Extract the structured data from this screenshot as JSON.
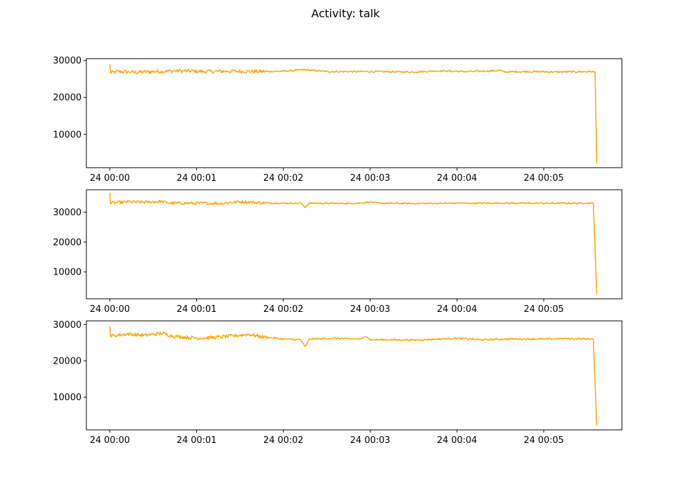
{
  "figure": {
    "title": "Activity: talk"
  },
  "chart_data": [
    {
      "type": "line",
      "title": "",
      "xlabel": "",
      "ylabel": "",
      "x_ticks": [
        "24 00:00",
        "24 00:01",
        "24 00:02",
        "24 00:03",
        "24 00:04",
        "24 00:05"
      ],
      "y_ticks": [
        10000,
        20000,
        30000
      ],
      "x_range_minutes": [
        -0.27,
        5.9
      ],
      "ylim": [
        1000,
        30500
      ],
      "color": "#ffa500",
      "series": [
        {
          "points": [
            [
              0.0,
              29000
            ],
            [
              0.01,
              26700
            ],
            [
              0.1,
              27000
            ],
            [
              0.3,
              26800
            ],
            [
              0.5,
              27000
            ],
            [
              0.8,
              27200
            ],
            [
              1.1,
              27000
            ],
            [
              1.4,
              27100
            ],
            [
              1.7,
              27000
            ],
            [
              2.0,
              27100
            ],
            [
              2.25,
              27500
            ],
            [
              2.5,
              27000
            ],
            [
              3.0,
              27000
            ],
            [
              3.5,
              26900
            ],
            [
              3.8,
              27200
            ],
            [
              4.1,
              27000
            ],
            [
              4.3,
              27100
            ],
            [
              4.5,
              27300
            ],
            [
              4.55,
              26900
            ],
            [
              4.8,
              27000
            ],
            [
              5.2,
              26900
            ],
            [
              5.55,
              27000
            ],
            [
              5.6,
              26800
            ],
            [
              5.61,
              2200
            ]
          ]
        }
      ]
    },
    {
      "type": "line",
      "title": "",
      "xlabel": "",
      "ylabel": "",
      "x_ticks": [
        "24 00:00",
        "24 00:01",
        "24 00:02",
        "24 00:03",
        "24 00:04",
        "24 00:05"
      ],
      "y_ticks": [
        10000,
        20000,
        30000
      ],
      "x_range_minutes": [
        -0.27,
        5.9
      ],
      "ylim": [
        1000,
        37500
      ],
      "color": "#ffa500",
      "series": [
        {
          "points": [
            [
              0.0,
              36500
            ],
            [
              0.01,
              33000
            ],
            [
              0.2,
              33500
            ],
            [
              0.4,
              33300
            ],
            [
              0.6,
              33600
            ],
            [
              0.7,
              33000
            ],
            [
              1.0,
              33000
            ],
            [
              1.3,
              33000
            ],
            [
              1.5,
              33500
            ],
            [
              1.7,
              33200
            ],
            [
              1.9,
              33000
            ],
            [
              2.2,
              33000
            ],
            [
              2.25,
              31700
            ],
            [
              2.3,
              33000
            ],
            [
              2.8,
              32900
            ],
            [
              3.0,
              33400
            ],
            [
              3.1,
              33000
            ],
            [
              3.5,
              32900
            ],
            [
              4.0,
              33000
            ],
            [
              4.5,
              33000
            ],
            [
              5.0,
              33000
            ],
            [
              5.58,
              33000
            ],
            [
              5.61,
              2500
            ]
          ]
        }
      ]
    },
    {
      "type": "line",
      "title": "",
      "xlabel": "",
      "ylabel": "",
      "x_ticks": [
        "24 00:00",
        "24 00:01",
        "24 00:02",
        "24 00:03",
        "24 00:04",
        "24 00:05"
      ],
      "y_ticks": [
        10000,
        20000,
        30000
      ],
      "x_range_minutes": [
        -0.27,
        5.9
      ],
      "ylim": [
        1000,
        31000
      ],
      "color": "#ffa500",
      "series": [
        {
          "points": [
            [
              0.0,
              29500
            ],
            [
              0.01,
              26800
            ],
            [
              0.2,
              27400
            ],
            [
              0.4,
              27000
            ],
            [
              0.6,
              27600
            ],
            [
              0.75,
              26700
            ],
            [
              1.0,
              26300
            ],
            [
              1.2,
              26400
            ],
            [
              1.4,
              26800
            ],
            [
              1.6,
              27300
            ],
            [
              1.75,
              26600
            ],
            [
              2.0,
              26000
            ],
            [
              2.2,
              25800
            ],
            [
              2.25,
              23800
            ],
            [
              2.3,
              26000
            ],
            [
              2.6,
              26200
            ],
            [
              2.9,
              26000
            ],
            [
              2.95,
              26900
            ],
            [
              3.0,
              25800
            ],
            [
              3.3,
              25800
            ],
            [
              3.5,
              25700
            ],
            [
              3.8,
              26000
            ],
            [
              4.0,
              26200
            ],
            [
              4.3,
              25800
            ],
            [
              4.6,
              26000
            ],
            [
              5.0,
              26000
            ],
            [
              5.3,
              26100
            ],
            [
              5.58,
              26000
            ],
            [
              5.61,
              2200
            ]
          ]
        }
      ]
    }
  ]
}
